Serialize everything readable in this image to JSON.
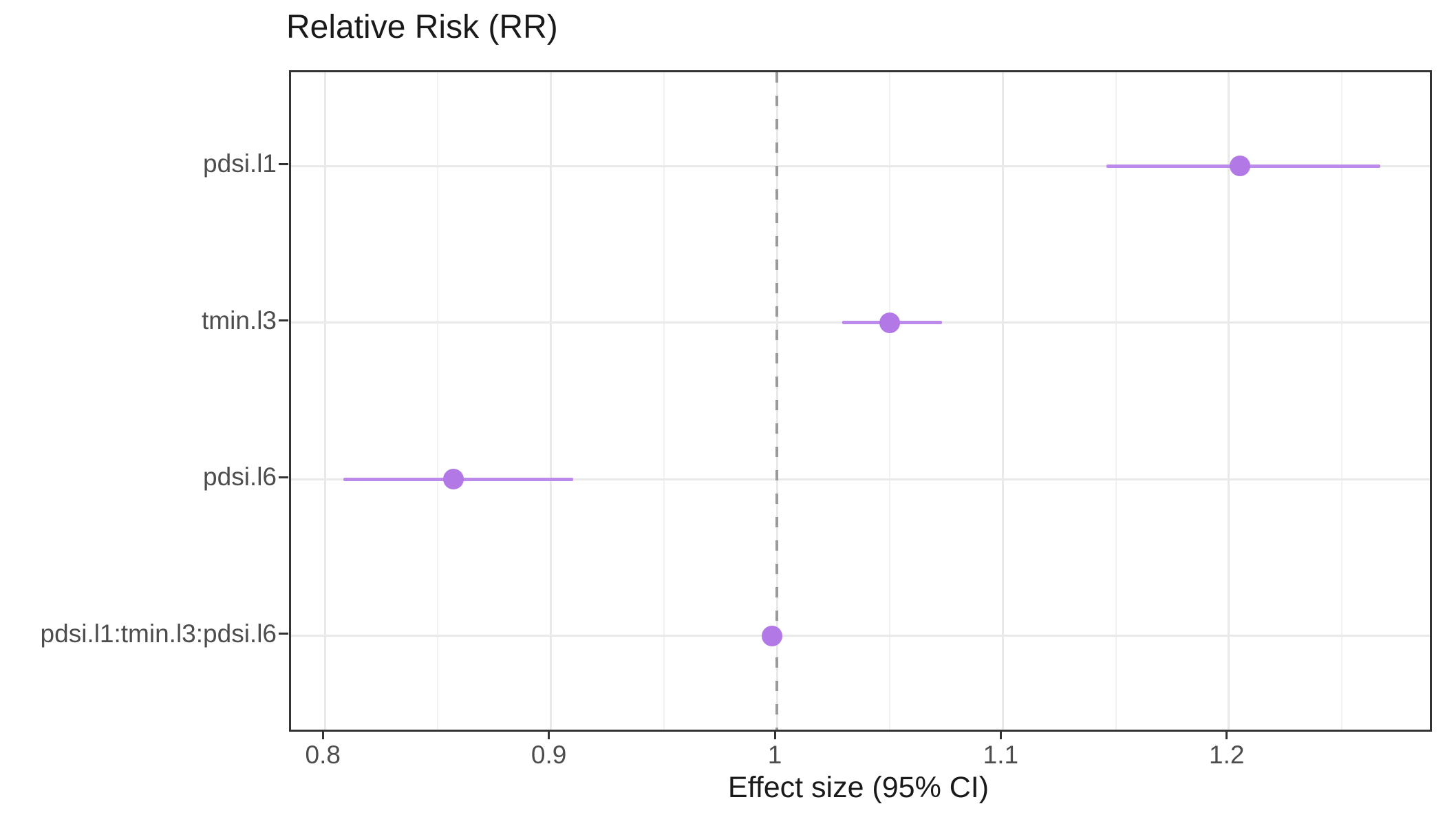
{
  "chart_data": {
    "type": "scatter",
    "subtype": "forest-plot",
    "title": "Relative Risk (RR)",
    "xlabel": "Effect size (95% CI)",
    "ylabel": "",
    "categories": [
      "pdsi.l1",
      "tmin.l3",
      "pdsi.l6",
      "pdsi.l1:tmin.l3:pdsi.l6"
    ],
    "series": [
      {
        "name": "Relative Risk",
        "points": [
          {
            "term": "pdsi.l1",
            "estimate": 1.205,
            "ci_low": 1.146,
            "ci_high": 1.267
          },
          {
            "term": "tmin.l3",
            "estimate": 1.05,
            "ci_low": 1.029,
            "ci_high": 1.073
          },
          {
            "term": "pdsi.l6",
            "estimate": 0.857,
            "ci_low": 0.808,
            "ci_high": 0.91
          },
          {
            "term": "pdsi.l1:tmin.l3:pdsi.l6",
            "estimate": 0.998,
            "ci_low": 0.998,
            "ci_high": 0.998
          }
        ]
      }
    ],
    "x_ticks": {
      "labels": [
        "0.8",
        "0.9",
        "1",
        "1.1",
        "1.2"
      ],
      "values": [
        0.8,
        0.9,
        1.0,
        1.1,
        1.2
      ]
    },
    "x_minor_gridlines": [
      0.85,
      0.95,
      1.05,
      1.15,
      1.25
    ],
    "xlim": [
      0.785,
      1.289
    ],
    "reference_line_x": 1.0,
    "grid": "major and minor vertical, major horizontal per category row",
    "legend": false,
    "colors": {
      "point": "#b278e6",
      "ci_line": "#bc8aeb",
      "reference_line": "#9a9a9a",
      "grid_major": "#e9e9e9",
      "grid_minor": "#f2f2f2",
      "panel_border": "#333333",
      "axis_text": "#4d4d4d",
      "title_text": "#1a1a1a"
    }
  }
}
